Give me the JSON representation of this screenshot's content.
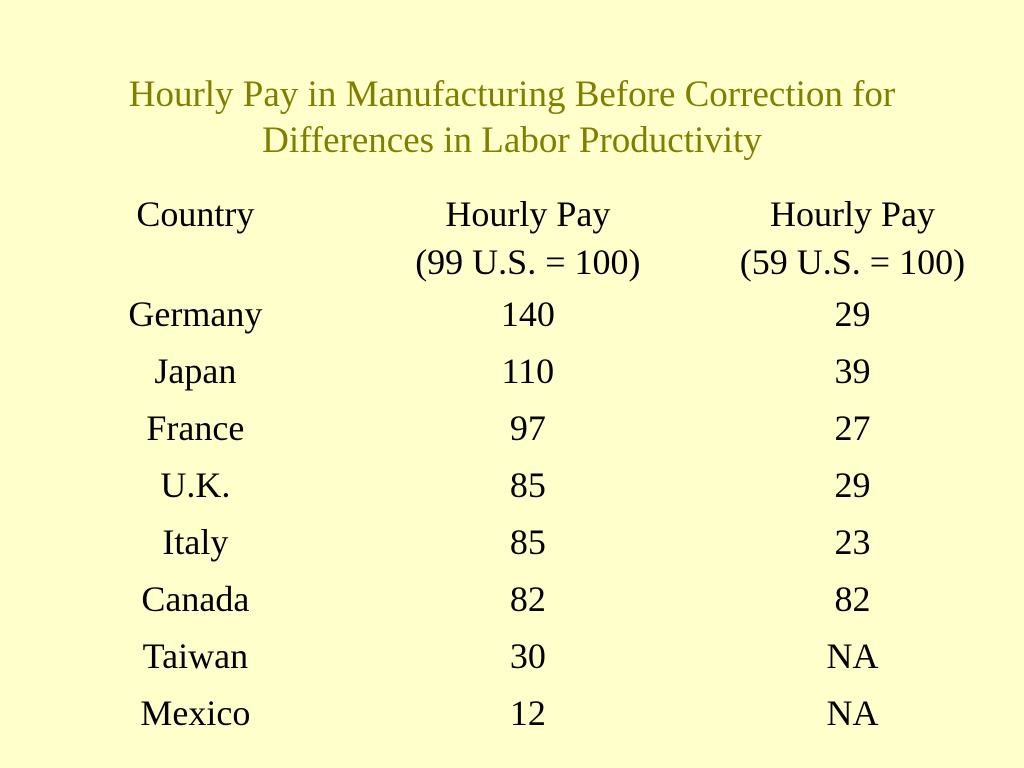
{
  "slide": {
    "title_lines": [
      "Hourly Pay in Manufacturing Before Correction for",
      "Differences in Labor Productivity"
    ],
    "colors": {
      "background": "#FFFFCC",
      "title": "#808000",
      "text": "#000000"
    }
  },
  "table": {
    "headers": [
      {
        "line1": "Country",
        "line2": ""
      },
      {
        "line1": "Hourly Pay",
        "line2": "(99 U.S. = 100)"
      },
      {
        "line1": "Hourly Pay",
        "line2": "(59 U.S. = 100)"
      }
    ],
    "rows": [
      {
        "country": "Germany",
        "pay_99": "140",
        "pay_59": "29"
      },
      {
        "country": "Japan",
        "pay_99": "110",
        "pay_59": "39"
      },
      {
        "country": "France",
        "pay_99": "97",
        "pay_59": "27"
      },
      {
        "country": "U.K.",
        "pay_99": "85",
        "pay_59": "29"
      },
      {
        "country": "Italy",
        "pay_99": "85",
        "pay_59": "23"
      },
      {
        "country": "Canada",
        "pay_99": "82",
        "pay_59": "82"
      },
      {
        "country": "Taiwan",
        "pay_99": "30",
        "pay_59": "NA"
      },
      {
        "country": "Mexico",
        "pay_99": "12",
        "pay_59": "NA"
      }
    ]
  }
}
